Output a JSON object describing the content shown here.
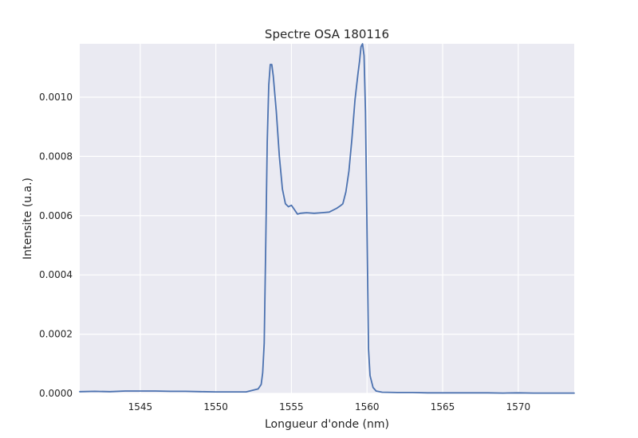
{
  "chart_data": {
    "type": "line",
    "title": "Spectre OSA 180116",
    "xlabel": "Longueur d'onde (nm)",
    "ylabel": "Intensite (u.a.)",
    "xlim": [
      1541.0,
      1573.7
    ],
    "ylim": [
      0.0,
      0.00118
    ],
    "xticks": [
      1545,
      1550,
      1555,
      1560,
      1565,
      1570
    ],
    "xtick_labels": [
      "1545",
      "1550",
      "1555",
      "1560",
      "1565",
      "1570"
    ],
    "yticks": [
      0.0,
      0.0002,
      0.0004,
      0.0006,
      0.0008,
      0.001
    ],
    "ytick_labels": [
      "0.0000",
      "0.0002",
      "0.0004",
      "0.0006",
      "0.0008",
      "0.0010"
    ],
    "grid": true,
    "series": [
      {
        "color": "#4c72b0",
        "x": [
          1541.0,
          1542.0,
          1543.0,
          1544.0,
          1545.0,
          1546.0,
          1547.0,
          1548.0,
          1549.0,
          1550.0,
          1551.0,
          1552.0,
          1552.8,
          1553.0,
          1553.1,
          1553.2,
          1553.3,
          1553.4,
          1553.5,
          1553.6,
          1553.7,
          1553.8,
          1554.0,
          1554.2,
          1554.4,
          1554.6,
          1554.8,
          1555.0,
          1555.2,
          1555.4,
          1555.6,
          1556.0,
          1556.5,
          1557.0,
          1557.5,
          1558.0,
          1558.2,
          1558.4,
          1558.6,
          1558.8,
          1559.0,
          1559.2,
          1559.4,
          1559.5,
          1559.6,
          1559.7,
          1559.8,
          1559.9,
          1560.0,
          1560.1,
          1560.2,
          1560.4,
          1560.6,
          1561.0,
          1562.0,
          1563.0,
          1564.0,
          1565.0,
          1566.0,
          1567.0,
          1568.0,
          1569.0,
          1570.0,
          1571.0,
          1572.0,
          1573.0,
          1573.7
        ],
        "y": [
          6e-06,
          7e-06,
          6e-06,
          8e-06,
          8e-06,
          8e-06,
          7e-06,
          7e-06,
          6e-06,
          5e-06,
          5e-06,
          5e-06,
          1.5e-05,
          3e-05,
          7e-05,
          0.00017,
          0.0005,
          0.00085,
          0.00104,
          0.00111,
          0.00111,
          0.00107,
          0.00095,
          0.0008,
          0.00069,
          0.00064,
          0.00063,
          0.000635,
          0.00062,
          0.000605,
          0.000608,
          0.00061,
          0.000608,
          0.00061,
          0.000612,
          0.000625,
          0.000632,
          0.00064,
          0.00068,
          0.00075,
          0.00086,
          0.00099,
          0.00108,
          0.00112,
          0.00117,
          0.00118,
          0.00114,
          0.00095,
          0.00055,
          0.00015,
          6e-05,
          2e-05,
          8e-06,
          4e-06,
          3e-06,
          3e-06,
          2e-06,
          2e-06,
          2e-06,
          2e-06,
          2e-06,
          1e-06,
          2e-06,
          1e-06,
          1e-06,
          1e-06,
          1e-06
        ]
      }
    ]
  }
}
